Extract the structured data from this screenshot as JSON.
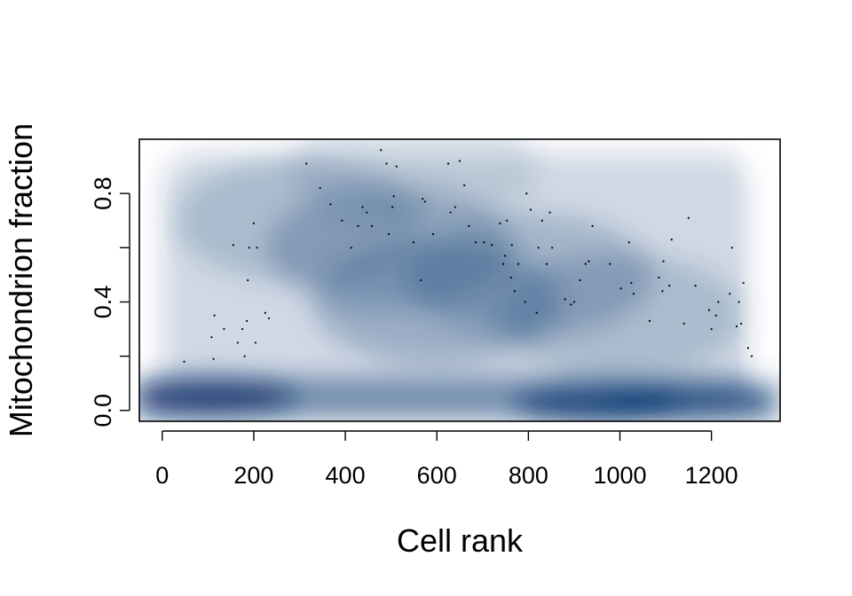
{
  "chart_data": {
    "type": "scatter",
    "style": "smoothed density scatter (blue shading) with sparse outlier points",
    "title": "",
    "xlabel": "Cell rank",
    "ylabel": "Mitochondrion fraction",
    "xlim": [
      -50,
      1350
    ],
    "ylim": [
      -0.04,
      1.0
    ],
    "xticks": [
      0,
      200,
      400,
      600,
      800,
      1000,
      1200
    ],
    "yticks": [
      0.0,
      0.4,
      0.8
    ],
    "yticks_minor": [
      0.2,
      0.6
    ],
    "ytick_labels": [
      "0.0",
      "0.4",
      "0.8"
    ],
    "density_color": "#08306b",
    "point_color": "#000000",
    "grid": false,
    "legend": "none",
    "density_hotspots": [
      {
        "x": 110,
        "y": 0.05,
        "weight": 1.0
      },
      {
        "x": 950,
        "y": 0.02,
        "weight": 0.9
      },
      {
        "x": 1150,
        "y": 0.03,
        "weight": 0.7
      },
      {
        "x": 600,
        "y": 0.4,
        "weight": 0.35
      },
      {
        "x": 500,
        "y": 0.6,
        "weight": 0.3
      },
      {
        "x": 800,
        "y": 0.5,
        "weight": 0.3
      },
      {
        "x": 300,
        "y": 0.7,
        "weight": 0.25
      },
      {
        "x": 1000,
        "y": 0.35,
        "weight": 0.25
      },
      {
        "x": 550,
        "y": 0.9,
        "weight": 0.15
      }
    ],
    "points": [
      {
        "x": 48,
        "y": 0.18
      },
      {
        "x": 108,
        "y": 0.27
      },
      {
        "x": 112,
        "y": 0.19
      },
      {
        "x": 114,
        "y": 0.35
      },
      {
        "x": 135,
        "y": 0.3
      },
      {
        "x": 155,
        "y": 0.61
      },
      {
        "x": 165,
        "y": 0.25
      },
      {
        "x": 175,
        "y": 0.3
      },
      {
        "x": 180,
        "y": 0.2
      },
      {
        "x": 185,
        "y": 0.33
      },
      {
        "x": 187,
        "y": 0.48
      },
      {
        "x": 190,
        "y": 0.6
      },
      {
        "x": 200,
        "y": 0.69
      },
      {
        "x": 204,
        "y": 0.25
      },
      {
        "x": 207,
        "y": 0.6
      },
      {
        "x": 225,
        "y": 0.36
      },
      {
        "x": 233,
        "y": 0.34
      },
      {
        "x": 315,
        "y": 0.91
      },
      {
        "x": 345,
        "y": 0.82
      },
      {
        "x": 368,
        "y": 0.76
      },
      {
        "x": 393,
        "y": 0.7
      },
      {
        "x": 413,
        "y": 0.6
      },
      {
        "x": 428,
        "y": 0.68
      },
      {
        "x": 438,
        "y": 0.75
      },
      {
        "x": 447,
        "y": 0.73
      },
      {
        "x": 458,
        "y": 0.68
      },
      {
        "x": 478,
        "y": 0.96
      },
      {
        "x": 490,
        "y": 0.91
      },
      {
        "x": 495,
        "y": 0.65
      },
      {
        "x": 503,
        "y": 0.75
      },
      {
        "x": 506,
        "y": 0.79
      },
      {
        "x": 512,
        "y": 0.9
      },
      {
        "x": 549,
        "y": 0.62
      },
      {
        "x": 565,
        "y": 0.48
      },
      {
        "x": 569,
        "y": 0.78
      },
      {
        "x": 574,
        "y": 0.77
      },
      {
        "x": 592,
        "y": 0.65
      },
      {
        "x": 625,
        "y": 0.91
      },
      {
        "x": 630,
        "y": 0.73
      },
      {
        "x": 640,
        "y": 0.75
      },
      {
        "x": 650,
        "y": 0.92
      },
      {
        "x": 660,
        "y": 0.83
      },
      {
        "x": 670,
        "y": 0.68
      },
      {
        "x": 685,
        "y": 0.62
      },
      {
        "x": 703,
        "y": 0.62
      },
      {
        "x": 720,
        "y": 0.61
      },
      {
        "x": 738,
        "y": 0.69
      },
      {
        "x": 745,
        "y": 0.54
      },
      {
        "x": 749,
        "y": 0.57
      },
      {
        "x": 753,
        "y": 0.7
      },
      {
        "x": 762,
        "y": 0.49
      },
      {
        "x": 764,
        "y": 0.61
      },
      {
        "x": 770,
        "y": 0.44
      },
      {
        "x": 778,
        "y": 0.54
      },
      {
        "x": 793,
        "y": 0.4
      },
      {
        "x": 796,
        "y": 0.8
      },
      {
        "x": 805,
        "y": 0.74
      },
      {
        "x": 818,
        "y": 0.36
      },
      {
        "x": 822,
        "y": 0.6
      },
      {
        "x": 830,
        "y": 0.7
      },
      {
        "x": 840,
        "y": 0.54
      },
      {
        "x": 847,
        "y": 0.73
      },
      {
        "x": 852,
        "y": 0.6
      },
      {
        "x": 880,
        "y": 0.41
      },
      {
        "x": 893,
        "y": 0.39
      },
      {
        "x": 900,
        "y": 0.4
      },
      {
        "x": 913,
        "y": 0.48
      },
      {
        "x": 925,
        "y": 0.54
      },
      {
        "x": 932,
        "y": 0.55
      },
      {
        "x": 940,
        "y": 0.68
      },
      {
        "x": 978,
        "y": 0.54
      },
      {
        "x": 1002,
        "y": 0.45
      },
      {
        "x": 1020,
        "y": 0.62
      },
      {
        "x": 1025,
        "y": 0.47
      },
      {
        "x": 1030,
        "y": 0.43
      },
      {
        "x": 1065,
        "y": 0.33
      },
      {
        "x": 1085,
        "y": 0.49
      },
      {
        "x": 1093,
        "y": 0.44
      },
      {
        "x": 1095,
        "y": 0.55
      },
      {
        "x": 1108,
        "y": 0.46
      },
      {
        "x": 1113,
        "y": 0.63
      },
      {
        "x": 1140,
        "y": 0.32
      },
      {
        "x": 1150,
        "y": 0.71
      },
      {
        "x": 1165,
        "y": 0.46
      },
      {
        "x": 1195,
        "y": 0.37
      },
      {
        "x": 1200,
        "y": 0.3
      },
      {
        "x": 1210,
        "y": 0.35
      },
      {
        "x": 1215,
        "y": 0.4
      },
      {
        "x": 1240,
        "y": 0.43
      },
      {
        "x": 1245,
        "y": 0.6
      },
      {
        "x": 1255,
        "y": 0.31
      },
      {
        "x": 1260,
        "y": 0.4
      },
      {
        "x": 1265,
        "y": 0.32
      },
      {
        "x": 1270,
        "y": 0.47
      },
      {
        "x": 1280,
        "y": 0.23
      },
      {
        "x": 1288,
        "y": 0.2
      }
    ]
  }
}
